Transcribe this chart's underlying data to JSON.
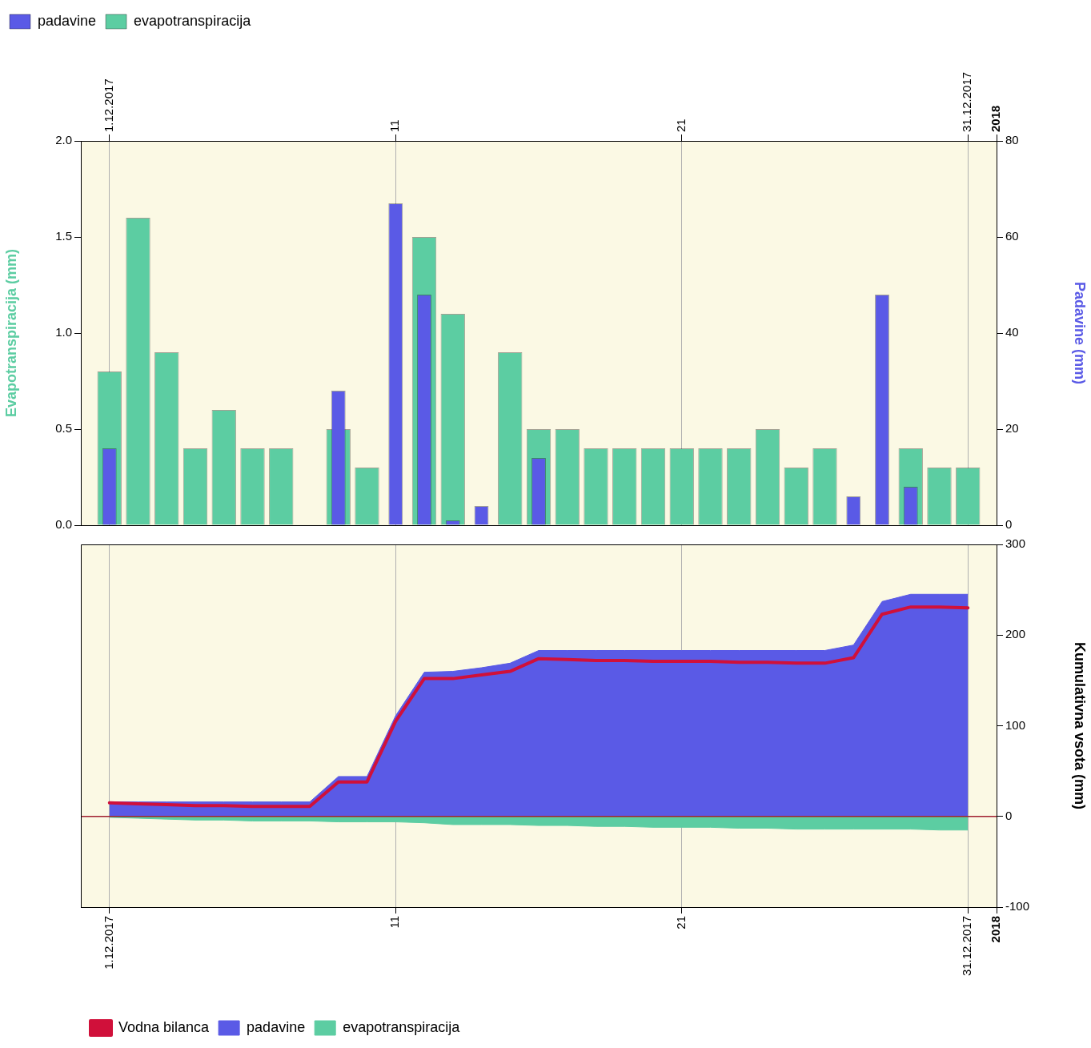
{
  "chart_data": [
    {
      "type": "bar",
      "legend": "top left",
      "grid": "x",
      "ylabel": "Evapotranspiracija (mm)",
      "y2label": "Padavine (mm)",
      "x": [
        "2017-12-01",
        "2017-12-02",
        "2017-12-03",
        "2017-12-04",
        "2017-12-05",
        "2017-12-06",
        "2017-12-07",
        "2017-12-08",
        "2017-12-09",
        "2017-12-10",
        "2017-12-11",
        "2017-12-12",
        "2017-12-13",
        "2017-12-14",
        "2017-12-15",
        "2017-12-16",
        "2017-12-17",
        "2017-12-18",
        "2017-12-19",
        "2017-12-20",
        "2017-12-21",
        "2017-12-22",
        "2017-12-23",
        "2017-12-24",
        "2017-12-25",
        "2017-12-26",
        "2017-12-27",
        "2017-12-28",
        "2017-12-29",
        "2017-12-30",
        "2017-12-31"
      ],
      "series": [
        {
          "name": "padavine",
          "color": "#5a5ae6",
          "axis": "y2",
          "values": [
            16,
            null,
            null,
            null,
            null,
            null,
            null,
            null,
            28,
            null,
            67,
            48,
            1,
            4,
            null,
            14,
            null,
            null,
            null,
            null,
            null,
            null,
            null,
            null,
            null,
            null,
            6,
            48,
            8,
            null,
            null
          ]
        },
        {
          "name": "evapotranspiracija",
          "color": "#5ccda2",
          "axis": "y",
          "values": [
            0.8,
            1.6,
            0.9,
            0.4,
            0.6,
            0.4,
            0.4,
            null,
            0.5,
            0.3,
            null,
            1.5,
            1.1,
            null,
            0.9,
            0.5,
            0.5,
            0.4,
            0.4,
            0.4,
            0.4,
            0.4,
            0.4,
            0.5,
            0.3,
            0.4,
            null,
            null,
            0.4,
            0.3,
            0.3
          ]
        }
      ],
      "ylim": [
        0,
        2
      ],
      "yticks": [
        {
          "value": 0,
          "label": "0.0"
        },
        {
          "value": 0.5,
          "label": "0.5"
        },
        {
          "value": 1,
          "label": "1.0"
        },
        {
          "value": 1.5,
          "label": "1.5"
        },
        {
          "value": 2,
          "label": "2.0"
        }
      ],
      "y2lim": [
        0,
        80
      ],
      "y2ticks": [
        0,
        20,
        40,
        60,
        80
      ],
      "xlim": [
        "2017-11-30",
        "2018-01-01"
      ],
      "xticks": [
        {
          "value": "2017-12-01",
          "label": "1.12.2017"
        },
        {
          "value": "2017-12-11",
          "label": "11"
        },
        {
          "value": "2017-12-21",
          "label": "21"
        },
        {
          "value": "2017-12-31",
          "label": "31.12.2017"
        },
        {
          "value": "2018-01-01",
          "label": "2018"
        }
      ]
    },
    {
      "type": "area",
      "legend": "bottom left",
      "grid": "x",
      "ylabel": "Kumulativna vsota (mm)",
      "x": [
        "2017-12-01",
        "2017-12-02",
        "2017-12-03",
        "2017-12-04",
        "2017-12-05",
        "2017-12-06",
        "2017-12-07",
        "2017-12-08",
        "2017-12-09",
        "2017-12-10",
        "2017-12-11",
        "2017-12-12",
        "2017-12-13",
        "2017-12-14",
        "2017-12-15",
        "2017-12-16",
        "2017-12-17",
        "2017-12-18",
        "2017-12-19",
        "2017-12-20",
        "2017-12-21",
        "2017-12-22",
        "2017-12-23",
        "2017-12-24",
        "2017-12-25",
        "2017-12-26",
        "2017-12-27",
        "2017-12-28",
        "2017-12-29",
        "2017-12-30",
        "2017-12-31"
      ],
      "series": [
        {
          "name": "Vodna bilanca",
          "type": "line",
          "color": "#d0103a",
          "values": [
            15,
            14,
            13,
            12,
            12,
            11,
            11,
            11,
            38,
            38,
            105,
            152,
            152,
            156,
            160,
            174,
            173,
            172,
            172,
            171,
            171,
            171,
            170,
            170,
            169,
            169,
            175,
            223,
            231,
            231,
            230
          ]
        },
        {
          "name": "padavine",
          "color": "#5a5ae6",
          "values": [
            16,
            16,
            16,
            16,
            16,
            16,
            16,
            16,
            44,
            44,
            111,
            159,
            160,
            164,
            169,
            183,
            183,
            183,
            183,
            183,
            183,
            183,
            183,
            183,
            183,
            183,
            189,
            237,
            245,
            245,
            245
          ]
        },
        {
          "name": "evapotranspiracija",
          "color": "#5ccda2",
          "values": [
            -1,
            -2,
            -3,
            -4,
            -4,
            -5,
            -5,
            -5,
            -6,
            -6,
            -6,
            -7,
            -9,
            -9,
            -9,
            -10,
            -10,
            -11,
            -11,
            -12,
            -12,
            -12,
            -13,
            -13,
            -14,
            -14,
            -14,
            -14,
            -14,
            -15,
            -15
          ]
        }
      ],
      "ylim": [
        -100,
        300
      ],
      "yticks": [
        -100,
        0,
        100,
        200,
        300
      ],
      "ref_lines": [
        {
          "axis": "y",
          "value": 0,
          "color": "#a02030"
        }
      ],
      "xlim": [
        "2017-11-30",
        "2018-01-01"
      ],
      "xticks": [
        {
          "value": "2017-12-01",
          "label": "1.12.2017"
        },
        {
          "value": "2017-12-11",
          "label": "11"
        },
        {
          "value": "2017-12-21",
          "label": "21"
        },
        {
          "value": "2017-12-31",
          "label": "31.12.2017"
        },
        {
          "value": "2018-01-01",
          "label": "2018"
        }
      ]
    }
  ]
}
